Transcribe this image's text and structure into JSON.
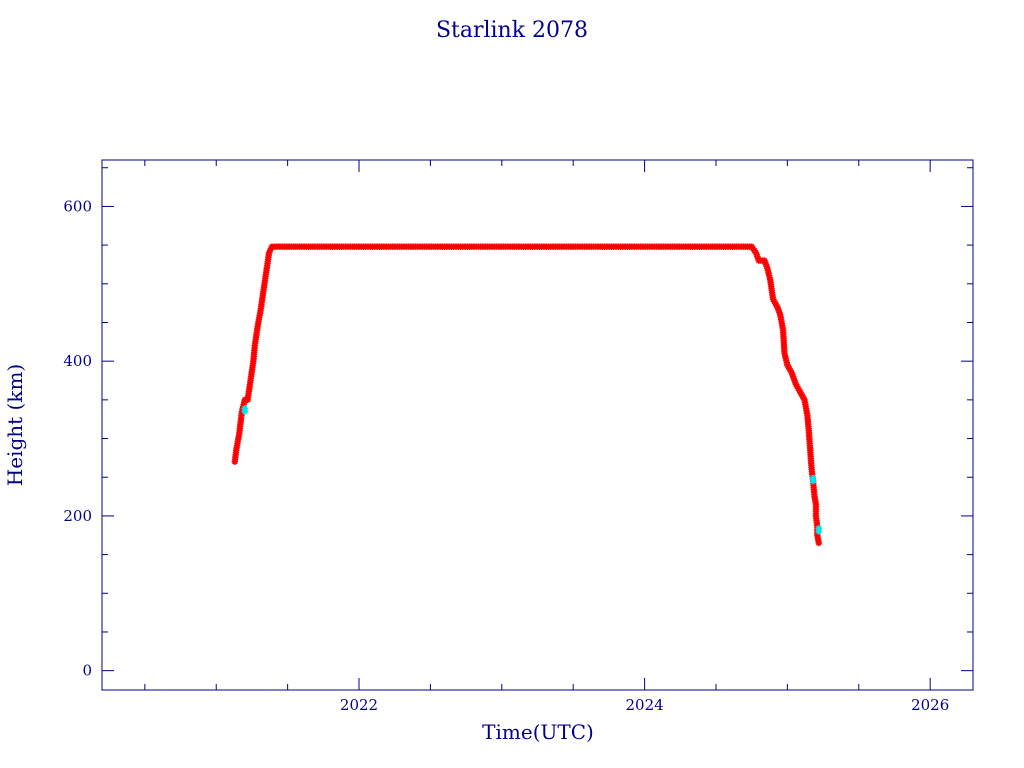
{
  "chart_data": {
    "type": "scatter",
    "title": "Starlink 2078",
    "xlabel": "Time(UTC)",
    "ylabel": "Height (km)",
    "xlim": [
      2020.2,
      2026.3
    ],
    "ylim": [
      -25,
      660
    ],
    "xticks": [
      2022,
      2024,
      2026
    ],
    "xtick_labels": [
      "2022",
      "2024",
      "2026"
    ],
    "yticks": [
      0,
      200,
      400,
      600
    ],
    "ytick_labels": [
      "0",
      "200",
      "400",
      "600"
    ],
    "grid": false,
    "colors": {
      "axes": "#00008b",
      "series_main": "#ff0000",
      "series_alt": "#00e5ee"
    },
    "series": [
      {
        "color": "#ff0000",
        "x": [
          2021.13,
          2021.14,
          2021.16,
          2021.18,
          2021.2,
          2021.21,
          2021.22,
          2021.24,
          2021.26,
          2021.27,
          2021.29,
          2021.31,
          2021.33,
          2021.35,
          2021.37,
          2021.39,
          2021.41,
          2021.44,
          2021.48,
          2021.6,
          2021.8,
          2022.0,
          2022.3,
          2022.6,
          2022.9,
          2023.2,
          2023.5,
          2023.8,
          2024.1,
          2024.4,
          2024.6,
          2024.75,
          2024.78,
          2024.8,
          2024.84,
          2024.86,
          2024.88,
          2024.9,
          2024.93,
          2024.95,
          2024.97,
          2024.98,
          2025.0,
          2025.03,
          2025.06,
          2025.09,
          2025.12,
          2025.14,
          2025.15,
          2025.16,
          2025.17,
          2025.18,
          2025.19,
          2025.2,
          2025.2,
          2025.21,
          2025.21,
          2025.22
        ],
        "y": [
          270,
          285,
          305,
          335,
          350,
          350,
          350,
          375,
          400,
          420,
          445,
          465,
          490,
          515,
          540,
          548,
          548,
          548,
          548,
          548,
          548,
          548,
          548,
          548,
          548,
          548,
          548,
          548,
          548,
          548,
          548,
          548,
          540,
          530,
          530,
          520,
          505,
          480,
          470,
          460,
          440,
          410,
          395,
          385,
          370,
          360,
          350,
          330,
          310,
          285,
          260,
          245,
          225,
          215,
          200,
          185,
          175,
          165
        ]
      },
      {
        "color": "#00e5ee",
        "x": [
          2021.2,
          2025.18,
          2025.22
        ],
        "y": [
          335,
          245,
          180
        ]
      }
    ]
  }
}
